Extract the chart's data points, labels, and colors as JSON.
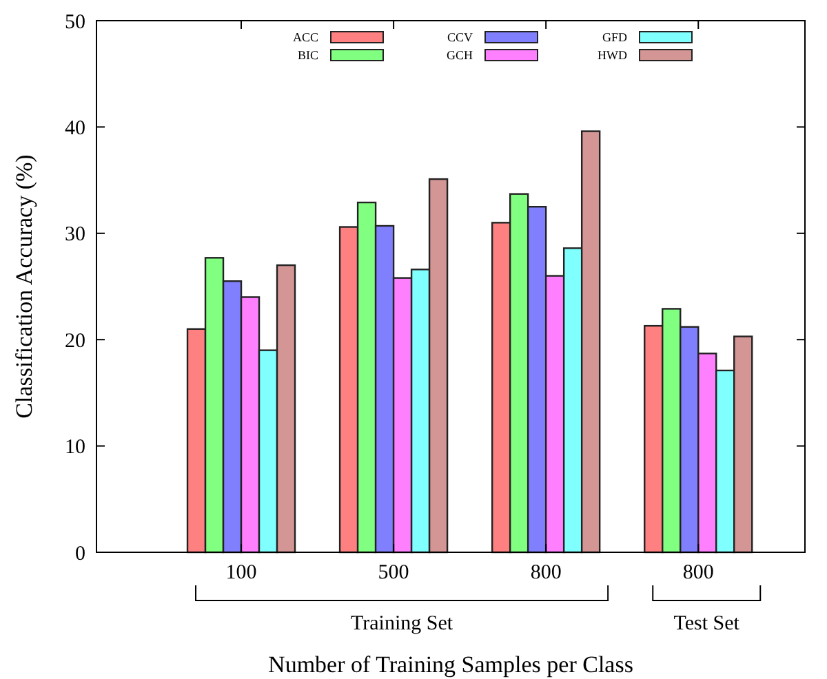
{
  "chart_data": {
    "type": "bar",
    "xlabel": "Number of Training Samples per Class",
    "ylabel": "Classification Accuracy (%)",
    "categories": [
      "100",
      "500",
      "800",
      "800"
    ],
    "series": [
      {
        "name": "ACC",
        "color": "#ff8080",
        "values": [
          21,
          30.6,
          31,
          21.3
        ]
      },
      {
        "name": "BIC",
        "color": "#80ff80",
        "values": [
          27.7,
          32.9,
          33.7,
          22.9
        ]
      },
      {
        "name": "CCV",
        "color": "#8080ff",
        "values": [
          25.5,
          30.7,
          32.5,
          21.2
        ]
      },
      {
        "name": "GCH",
        "color": "#ff80ff",
        "values": [
          24,
          25.8,
          26,
          18.7
        ]
      },
      {
        "name": "GFD",
        "color": "#80ffff",
        "values": [
          19,
          26.6,
          28.6,
          17.1
        ]
      },
      {
        "name": "HWD",
        "color": "#d49595",
        "values": [
          27,
          35.1,
          39.6,
          20.3
        ]
      }
    ],
    "ylim": [
      0,
      50
    ],
    "yticks": [
      0,
      10,
      20,
      30,
      40,
      50
    ],
    "legend": "top",
    "grid": false,
    "annotations": [
      "Training Set",
      "Test Set"
    ]
  }
}
